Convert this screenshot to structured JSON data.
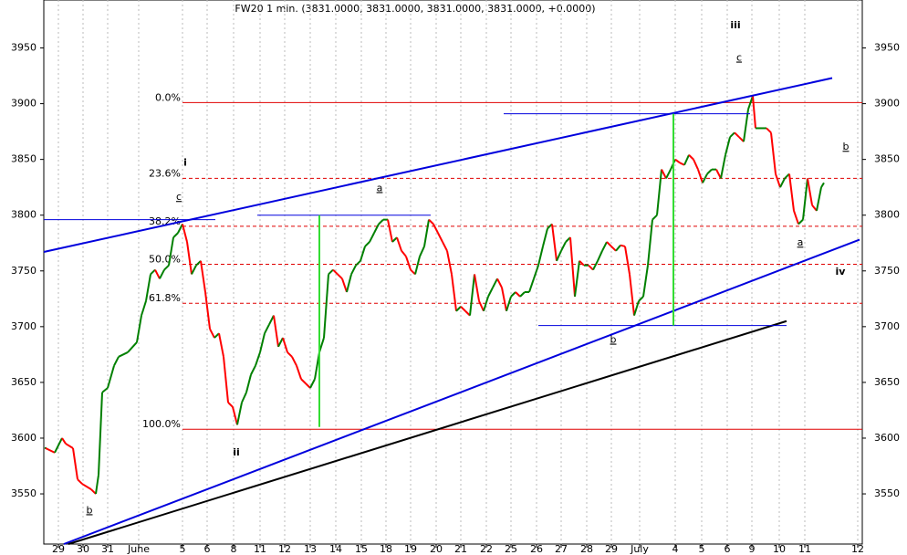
{
  "chart_data": {
    "type": "line",
    "title": "FW20 1 min. (3831.0000, 3831.0000, 3831.0000, 3831.0000, +0.0000)",
    "up_color": "#008000",
    "down_color": "#ff0000",
    "xlim": [
      0,
      897
    ],
    "ylim": [
      3505,
      3993
    ],
    "yticks": [
      3550,
      3600,
      3650,
      3700,
      3750,
      3800,
      3850,
      3900,
      3950
    ],
    "grid": true,
    "xticks": [
      {
        "value": 16,
        "label": "29"
      },
      {
        "value": 43,
        "label": "30"
      },
      {
        "value": 70,
        "label": "31"
      },
      {
        "value": 104,
        "label": "June"
      },
      {
        "value": 152,
        "label": "5"
      },
      {
        "value": 179,
        "label": "6"
      },
      {
        "value": 208,
        "label": "8"
      },
      {
        "value": 237,
        "label": "11"
      },
      {
        "value": 264,
        "label": "12"
      },
      {
        "value": 292,
        "label": "13"
      },
      {
        "value": 320,
        "label": "14"
      },
      {
        "value": 348,
        "label": "15"
      },
      {
        "value": 375,
        "label": "18"
      },
      {
        "value": 402,
        "label": "19"
      },
      {
        "value": 430,
        "label": "20"
      },
      {
        "value": 457,
        "label": "21"
      },
      {
        "value": 485,
        "label": "22"
      },
      {
        "value": 512,
        "label": "25"
      },
      {
        "value": 540,
        "label": "26"
      },
      {
        "value": 567,
        "label": "27"
      },
      {
        "value": 595,
        "label": "28"
      },
      {
        "value": 622,
        "label": "29"
      },
      {
        "value": 653,
        "label": "July"
      },
      {
        "value": 692,
        "label": "4"
      },
      {
        "value": 721,
        "label": "5"
      },
      {
        "value": 749,
        "label": "6"
      },
      {
        "value": 776,
        "label": "9"
      },
      {
        "value": 806,
        "label": "10"
      },
      {
        "value": 834,
        "label": "11"
      },
      {
        "value": 892,
        "label": "12"
      }
    ],
    "x": [
      2,
      12,
      20,
      24,
      32,
      37,
      42,
      52,
      57,
      60,
      64,
      70,
      77,
      82,
      92,
      102,
      107,
      112,
      117,
      122,
      127,
      132,
      137,
      142,
      147,
      152,
      157,
      162,
      167,
      172,
      177,
      182,
      187,
      192,
      197,
      202,
      207,
      212,
      217,
      222,
      227,
      232,
      237,
      242,
      247,
      252,
      257,
      262,
      267,
      272,
      277,
      282,
      287,
      292,
      297,
      302,
      307,
      312,
      317,
      322,
      327,
      332,
      337,
      342,
      347,
      352,
      357,
      362,
      367,
      372,
      377,
      382,
      387,
      392,
      397,
      402,
      407,
      412,
      417,
      422,
      427,
      432,
      437,
      442,
      447,
      452,
      457,
      462,
      467,
      472,
      477,
      482,
      487,
      492,
      497,
      502,
      507,
      512,
      517,
      522,
      527,
      532,
      537,
      542,
      547,
      552,
      557,
      562,
      567,
      572,
      577,
      582,
      587,
      592,
      597,
      602,
      607,
      612,
      617,
      622,
      627,
      632,
      637,
      642,
      647,
      652,
      657,
      662,
      667,
      672,
      677,
      682,
      687,
      692,
      697,
      702,
      707,
      712,
      717,
      722,
      727,
      732,
      737,
      742,
      747,
      752,
      757,
      762,
      767,
      772,
      777,
      780,
      787,
      792,
      797,
      802,
      807,
      812,
      817,
      822,
      827,
      832,
      837,
      842,
      847,
      852,
      855
    ],
    "values": [
      3591,
      3587,
      3600,
      3595,
      3591,
      3563,
      3559,
      3554,
      3550,
      3567,
      3641,
      3645,
      3665,
      3673,
      3677,
      3686,
      3710,
      3723,
      3747,
      3751,
      3743,
      3751,
      3755,
      3780,
      3784,
      3792,
      3776,
      3747,
      3755,
      3759,
      3731,
      3698,
      3690,
      3694,
      3673,
      3632,
      3628,
      3612,
      3632,
      3641,
      3657,
      3665,
      3677,
      3694,
      3702,
      3710,
      3682,
      3690,
      3677,
      3673,
      3665,
      3653,
      3649,
      3645,
      3653,
      3677,
      3690,
      3747,
      3751,
      3747,
      3743,
      3731,
      3747,
      3755,
      3759,
      3772,
      3776,
      3784,
      3792,
      3796,
      3796,
      3776,
      3780,
      3768,
      3763,
      3751,
      3747,
      3763,
      3772,
      3796,
      3792,
      3784,
      3776,
      3768,
      3747,
      3714,
      3718,
      3714,
      3710,
      3747,
      3723,
      3714,
      3727,
      3735,
      3743,
      3735,
      3714,
      3727,
      3731,
      3727,
      3731,
      3731,
      3743,
      3755,
      3772,
      3788,
      3792,
      3759,
      3768,
      3776,
      3780,
      3727,
      3759,
      3755,
      3755,
      3751,
      3759,
      3768,
      3776,
      3772,
      3768,
      3773,
      3772,
      3747,
      3710,
      3723,
      3727,
      3755,
      3796,
      3800,
      3841,
      3833,
      3841,
      3850,
      3847,
      3845,
      3854,
      3850,
      3841,
      3829,
      3837,
      3841,
      3841,
      3833,
      3854,
      3870,
      3874,
      3870,
      3866,
      3895,
      3907,
      3878,
      3878,
      3878,
      3874,
      3837,
      3825,
      3833,
      3837,
      3804,
      3792,
      3796,
      3833,
      3809,
      3804,
      3825,
      3829
    ],
    "fib_levels": [
      {
        "label": "0.0%",
        "value": 3901,
        "style": "solid"
      },
      {
        "label": "23.6%",
        "value": 3833,
        "style": "dashed"
      },
      {
        "label": "38.2%",
        "value": 3790,
        "style": "dashed"
      },
      {
        "label": "50.0%",
        "value": 3756,
        "style": "dashed"
      },
      {
        "label": "61.8%",
        "value": 3721,
        "style": "dashed"
      },
      {
        "label": "100.0%",
        "value": 3608,
        "style": "solid"
      }
    ],
    "fib_start_x": 152,
    "fib_color": "#e00000",
    "trend_lines": [
      {
        "x": [
          0,
          864
        ],
        "y": [
          3767,
          3923
        ],
        "color": "#0000dd",
        "width": 2
      },
      {
        "x": [
          22,
          894
        ],
        "y": [
          3505,
          3778
        ],
        "color": "#0000dd",
        "width": 2
      },
      {
        "x": [
          27,
          814
        ],
        "y": [
          3505,
          3705
        ],
        "color": "#000000",
        "width": 2
      },
      {
        "x": [
          0,
          188
        ],
        "y": [
          3796,
          3796
        ],
        "color": "#0000dd",
        "width": 1
      },
      {
        "x": [
          234,
          424
        ],
        "y": [
          3800,
          3800
        ],
        "color": "#0000dd",
        "width": 1
      },
      {
        "x": [
          504,
          774
        ],
        "y": [
          3891,
          3891
        ],
        "color": "#0000dd",
        "width": 1
      },
      {
        "x": [
          542,
          814
        ],
        "y": [
          3701,
          3701
        ],
        "color": "#0000dd",
        "width": 1
      },
      {
        "x": [
          302,
          302
        ],
        "y": [
          3800,
          3610
        ],
        "color": "#33dd33",
        "width": 2
      },
      {
        "x": [
          690,
          690
        ],
        "y": [
          3891,
          3701
        ],
        "color": "#33dd33",
        "width": 2
      }
    ],
    "wave_labels": [
      {
        "text": "iii",
        "x": 758,
        "y": 3970,
        "color": "#0000cc",
        "style": "bold"
      },
      {
        "text": "c",
        "x": 762,
        "y": 3941,
        "color": "#dd0000",
        "style": "underline"
      },
      {
        "text": "i",
        "x": 155,
        "y": 3847,
        "color": "#0000cc",
        "style": "bold"
      },
      {
        "text": "c",
        "x": 148,
        "y": 3816,
        "color": "#dd0000",
        "style": "underline"
      },
      {
        "text": "a",
        "x": 368,
        "y": 3824,
        "color": "#dd0000",
        "style": "underline"
      },
      {
        "text": "b",
        "x": 879,
        "y": 3861,
        "color": "#dd0000",
        "style": "underline"
      },
      {
        "text": "a",
        "x": 829,
        "y": 3775,
        "color": "#dd0000",
        "style": "underline"
      },
      {
        "text": "iv",
        "x": 873,
        "y": 3749,
        "color": "#0000cc",
        "style": "bold"
      },
      {
        "text": "b",
        "x": 624,
        "y": 3688,
        "color": "#dd0000",
        "style": "underline"
      },
      {
        "text": "ii",
        "x": 211,
        "y": 3587,
        "color": "#0000cc",
        "style": "bold"
      },
      {
        "text": "b",
        "x": 50,
        "y": 3535,
        "color": "#dd0000",
        "style": "underline"
      }
    ]
  }
}
